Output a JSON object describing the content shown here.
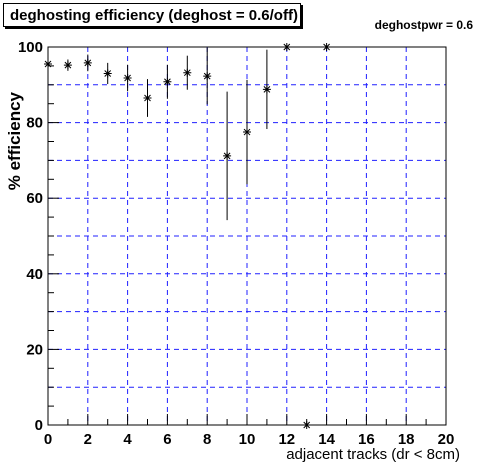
{
  "chart_data": {
    "type": "scatter",
    "title": "deghosting efficiency (deghost = 0.6/off)",
    "subtitle": "deghostpwr = 0.6",
    "xlabel": "adjacent tracks (dr < 8cm)",
    "ylabel": "% efficiency",
    "xlim": [
      0,
      20
    ],
    "ylim": [
      0,
      100
    ],
    "x_ticks": [
      0,
      2,
      4,
      6,
      8,
      10,
      12,
      14,
      16,
      18,
      20
    ],
    "y_ticks": [
      0,
      20,
      40,
      60,
      80,
      100
    ],
    "x_ticks_text": [
      "0",
      "2",
      "4",
      "6",
      "8",
      "10",
      "12",
      "14",
      "16",
      "18",
      "20"
    ],
    "y_ticks_text": [
      "0",
      "20",
      "40",
      "60",
      "80",
      "100"
    ],
    "grid": true,
    "marker": "asterisk",
    "points": [
      {
        "x": 0,
        "y": 95.5,
        "err": 1.5
      },
      {
        "x": 1,
        "y": 95.2,
        "err": 1.5
      },
      {
        "x": 2,
        "y": 95.8,
        "err": 2.2
      },
      {
        "x": 3,
        "y": 93.0,
        "err": 2.8
      },
      {
        "x": 4,
        "y": 91.8,
        "err": 3.5
      },
      {
        "x": 5,
        "y": 86.5,
        "err": 5.0
      },
      {
        "x": 6,
        "y": 90.8,
        "err": 4.5
      },
      {
        "x": 7,
        "y": 93.2,
        "err": 4.5
      },
      {
        "x": 8,
        "y": 92.3,
        "err": 7.5
      },
      {
        "x": 9,
        "y": 71.2,
        "err": 17.0
      },
      {
        "x": 10,
        "y": 77.5,
        "err": 13.8
      },
      {
        "x": 11,
        "y": 88.8,
        "err": 10.5
      },
      {
        "x": 12,
        "y": 100,
        "err": 0
      },
      {
        "x": 13,
        "y": 0,
        "err": 0
      },
      {
        "x": 14,
        "y": 100,
        "err": 0
      }
    ]
  }
}
